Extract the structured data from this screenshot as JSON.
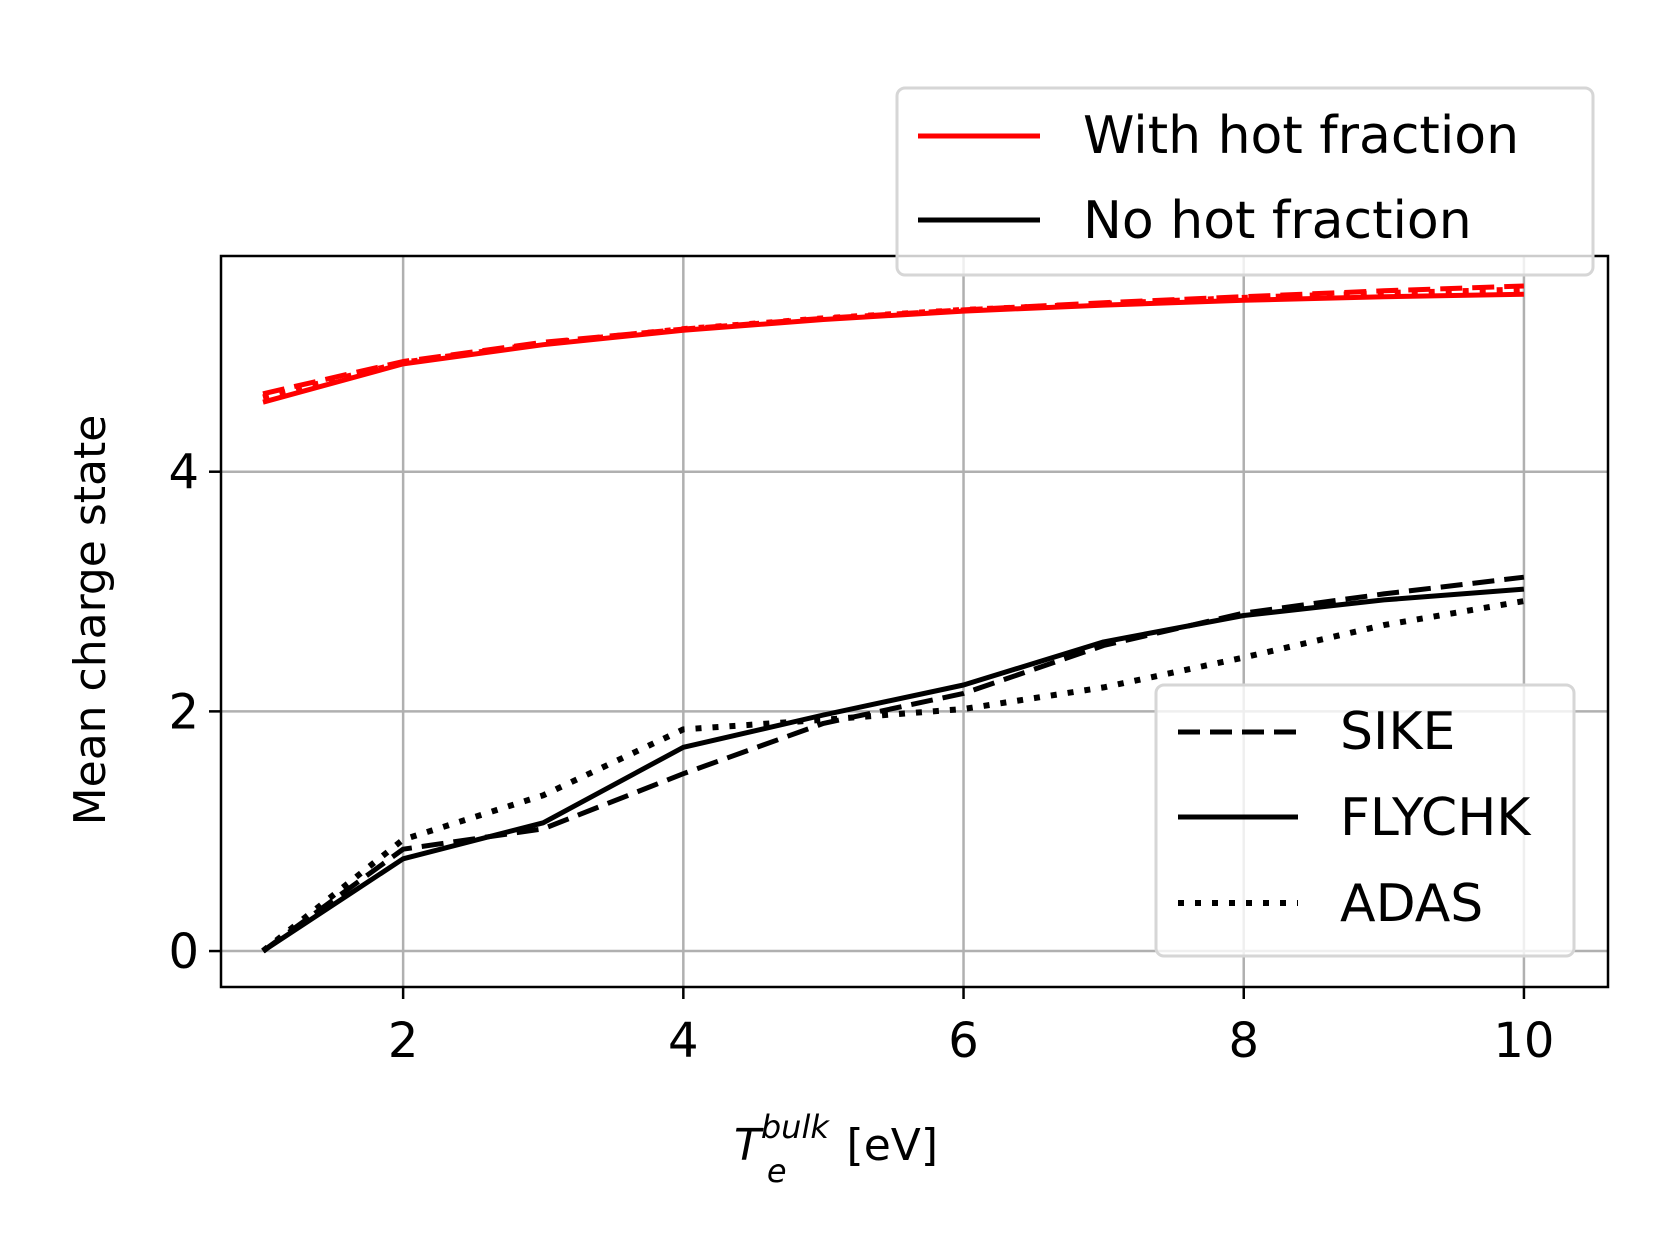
{
  "chart_data": {
    "type": "line",
    "xlabel": {
      "main": "T",
      "sub": "e",
      "sup": "bulk",
      "unit": " [eV]"
    },
    "ylabel": "Mean charge state",
    "xlim": [
      0.7,
      10.6
    ],
    "ylim": [
      -0.3,
      5.8
    ],
    "xticks": [
      2,
      4,
      6,
      8,
      10
    ],
    "yticks": [
      0,
      2,
      4
    ],
    "grid": true,
    "x": [
      1,
      2,
      3,
      4,
      5,
      6,
      7,
      8,
      9,
      10
    ],
    "series": [
      {
        "group": "with_hot",
        "model": "sike",
        "color": "#ff0000",
        "style": "dashed",
        "values": [
          4.65,
          4.92,
          5.08,
          5.19,
          5.28,
          5.35,
          5.41,
          5.46,
          5.51,
          5.55
        ]
      },
      {
        "group": "with_hot",
        "model": "flychk",
        "color": "#ff0000",
        "style": "solid",
        "values": [
          4.58,
          4.9,
          5.06,
          5.18,
          5.27,
          5.34,
          5.39,
          5.43,
          5.46,
          5.48
        ]
      },
      {
        "group": "with_hot",
        "model": "adas",
        "color": "#ff0000",
        "style": "dotted",
        "values": [
          4.62,
          4.91,
          5.07,
          5.19,
          5.28,
          5.35,
          5.4,
          5.45,
          5.49,
          5.52
        ]
      },
      {
        "group": "no_hot",
        "model": "sike",
        "color": "#000000",
        "style": "dashed",
        "values": [
          0.0,
          0.85,
          1.02,
          1.48,
          1.9,
          2.15,
          2.55,
          2.82,
          2.98,
          3.12
        ]
      },
      {
        "group": "no_hot",
        "model": "flychk",
        "color": "#000000",
        "style": "solid",
        "values": [
          0.0,
          0.77,
          1.07,
          1.7,
          1.97,
          2.22,
          2.58,
          2.8,
          2.93,
          3.02
        ]
      },
      {
        "group": "no_hot",
        "model": "adas",
        "color": "#000000",
        "style": "dotted",
        "values": [
          0.0,
          0.93,
          1.3,
          1.85,
          1.93,
          2.02,
          2.2,
          2.45,
          2.72,
          2.92
        ]
      }
    ],
    "legend_groups": {
      "placement": "top-right, above axes",
      "entries": [
        {
          "label": "With hot fraction",
          "color": "#ff0000",
          "style": "solid"
        },
        {
          "label": "No hot fraction",
          "color": "#000000",
          "style": "solid"
        }
      ]
    },
    "legend_models": {
      "placement": "lower-right",
      "entries": [
        {
          "label": "SIKE",
          "color": "#000000",
          "style": "dashed"
        },
        {
          "label": "FLYCHK",
          "color": "#000000",
          "style": "solid"
        },
        {
          "label": "ADAS",
          "color": "#000000",
          "style": "dotted"
        }
      ]
    }
  }
}
